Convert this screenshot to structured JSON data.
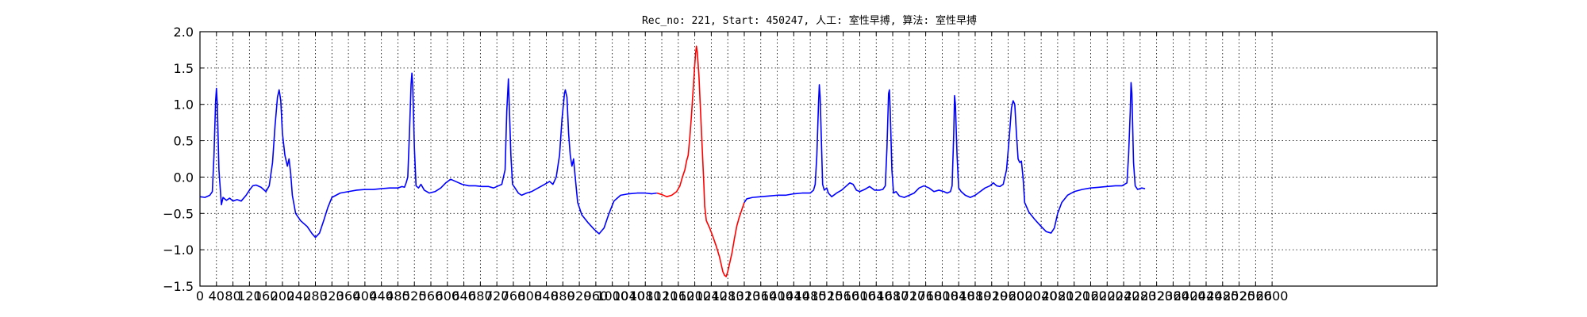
{
  "chart_data": {
    "type": "line",
    "title": "Rec_no: 221, Start: 450247, 人工: 室性早搏, 算法: 室性早搏",
    "xlabel": "",
    "ylabel": "",
    "xlim": [
      0,
      1500
    ],
    "ylim": [
      -1.5,
      2.0
    ],
    "grid": true,
    "x_ticks": [
      0,
      20,
      40,
      60,
      80,
      100,
      120,
      140,
      160,
      180,
      200,
      220,
      240,
      260,
      280,
      300,
      320,
      340,
      360,
      380,
      400,
      420,
      440,
      460,
      480,
      500,
      520,
      540,
      560,
      580,
      600,
      620,
      640,
      660,
      680,
      700,
      720,
      740,
      760,
      780,
      800,
      820,
      840,
      860,
      880,
      900,
      920,
      940,
      960,
      980,
      1000,
      1020,
      1040,
      1060,
      1080,
      1100,
      1120,
      1140,
      1160,
      1180,
      1200,
      1220,
      1240,
      1260,
      1280,
      1300
    ],
    "x_tick_labels": [
      "0",
      "40",
      "80",
      "120",
      "160",
      "200",
      "240",
      "280",
      "320",
      "360",
      "400",
      "440",
      "480",
      "520",
      "560",
      "600",
      "640",
      "680",
      "720",
      "760",
      "800",
      "840",
      "880",
      "920",
      "960",
      "1000",
      "1040",
      "1080",
      "1120",
      "1160",
      "1200",
      "1240",
      "1280",
      "1320",
      "1360",
      "1400",
      "1440",
      "1480",
      "1520",
      "1560",
      "1600",
      "1640",
      "1680",
      "1720",
      "1760",
      "1800",
      "1840",
      "1880",
      "1920",
      "1960",
      "2000",
      "2040",
      "2080",
      "2120",
      "2160",
      "2200",
      "2240",
      "2280",
      "2320",
      "2360",
      "2400",
      "2440",
      "2480",
      "2520",
      "2560",
      "2600"
    ],
    "y_ticks": [
      -1.5,
      -1.0,
      -0.5,
      0.0,
      0.5,
      1.0,
      1.5,
      2.0
    ],
    "y_tick_labels": [
      "−1.5",
      "−1.0",
      "−0.5",
      "0.0",
      "0.5",
      "1.0",
      "1.5",
      "2.0"
    ],
    "series": [
      {
        "color": "#0000ff",
        "points": [
          [
            0,
            -0.27
          ],
          [
            6,
            -0.28
          ],
          [
            12,
            -0.25
          ],
          [
            15,
            -0.2
          ],
          [
            17,
            0.3
          ],
          [
            19,
            1.05
          ],
          [
            20,
            1.22
          ],
          [
            21,
            1.0
          ],
          [
            23,
            0.1
          ],
          [
            25,
            -0.22
          ],
          [
            26,
            -0.38
          ],
          [
            28,
            -0.28
          ],
          [
            32,
            -0.32
          ],
          [
            36,
            -0.29
          ],
          [
            40,
            -0.33
          ],
          [
            45,
            -0.31
          ],
          [
            50,
            -0.33
          ],
          [
            56,
            -0.25
          ],
          [
            60,
            -0.18
          ],
          [
            64,
            -0.12
          ],
          [
            68,
            -0.11
          ],
          [
            74,
            -0.14
          ],
          [
            80,
            -0.2
          ],
          [
            84,
            -0.12
          ],
          [
            88,
            0.2
          ],
          [
            91,
            0.7
          ],
          [
            94,
            1.1
          ],
          [
            96,
            1.2
          ],
          [
            98,
            1.05
          ],
          [
            100,
            0.6
          ],
          [
            103,
            0.3
          ],
          [
            106,
            0.15
          ],
          [
            108,
            0.25
          ],
          [
            110,
            0.05
          ],
          [
            112,
            -0.25
          ],
          [
            116,
            -0.5
          ],
          [
            122,
            -0.6
          ],
          [
            130,
            -0.68
          ],
          [
            136,
            -0.78
          ],
          [
            140,
            -0.83
          ],
          [
            145,
            -0.77
          ],
          [
            150,
            -0.6
          ],
          [
            155,
            -0.42
          ],
          [
            160,
            -0.28
          ],
          [
            170,
            -0.22
          ],
          [
            180,
            -0.2
          ],
          [
            190,
            -0.18
          ],
          [
            200,
            -0.17
          ],
          [
            210,
            -0.17
          ],
          [
            220,
            -0.16
          ],
          [
            230,
            -0.15
          ],
          [
            240,
            -0.15
          ],
          [
            245,
            -0.13
          ],
          [
            248,
            -0.14
          ],
          [
            250,
            -0.08
          ],
          [
            252,
            0.0
          ],
          [
            254,
            0.6
          ],
          [
            256,
            1.28
          ],
          [
            257,
            1.43
          ],
          [
            258,
            1.25
          ],
          [
            260,
            0.4
          ],
          [
            262,
            -0.12
          ],
          [
            265,
            -0.15
          ],
          [
            268,
            -0.1
          ],
          [
            272,
            -0.18
          ],
          [
            278,
            -0.22
          ],
          [
            285,
            -0.2
          ],
          [
            292,
            -0.15
          ],
          [
            298,
            -0.08
          ],
          [
            304,
            -0.03
          ],
          [
            310,
            -0.06
          ],
          [
            318,
            -0.1
          ],
          [
            326,
            -0.12
          ],
          [
            334,
            -0.12
          ],
          [
            342,
            -0.13
          ],
          [
            350,
            -0.13
          ],
          [
            356,
            -0.15
          ],
          [
            362,
            -0.12
          ],
          [
            366,
            -0.1
          ],
          [
            370,
            0.1
          ],
          [
            372,
            0.9
          ],
          [
            374,
            1.35
          ],
          [
            375,
            1.0
          ],
          [
            377,
            0.3
          ],
          [
            379,
            -0.1
          ],
          [
            382,
            -0.15
          ],
          [
            386,
            -0.22
          ],
          [
            390,
            -0.25
          ],
          [
            396,
            -0.22
          ],
          [
            402,
            -0.2
          ],
          [
            410,
            -0.15
          ],
          [
            418,
            -0.1
          ],
          [
            424,
            -0.06
          ],
          [
            428,
            -0.1
          ],
          [
            432,
            0.0
          ],
          [
            436,
            0.3
          ],
          [
            439,
            0.8
          ],
          [
            442,
            1.15
          ],
          [
            443,
            1.2
          ],
          [
            445,
            1.1
          ],
          [
            447,
            0.6
          ],
          [
            449,
            0.3
          ],
          [
            451,
            0.15
          ],
          [
            453,
            0.25
          ],
          [
            455,
            0.0
          ],
          [
            458,
            -0.35
          ],
          [
            463,
            -0.52
          ],
          [
            470,
            -0.62
          ],
          [
            478,
            -0.72
          ],
          [
            484,
            -0.78
          ],
          [
            490,
            -0.7
          ],
          [
            496,
            -0.5
          ],
          [
            502,
            -0.33
          ],
          [
            510,
            -0.25
          ],
          [
            520,
            -0.23
          ],
          [
            530,
            -0.22
          ],
          [
            540,
            -0.22
          ],
          [
            548,
            -0.23
          ],
          [
            554,
            -0.22
          ]
        ],
        "name": ""
      },
      {
        "color": "#ff0000",
        "points": [
          [
            554,
            -0.22
          ],
          [
            560,
            -0.24
          ],
          [
            566,
            -0.27
          ],
          [
            572,
            -0.25
          ],
          [
            578,
            -0.2
          ],
          [
            582,
            -0.12
          ],
          [
            585,
            0.0
          ],
          [
            588,
            0.1
          ],
          [
            590,
            0.22
          ],
          [
            592,
            0.3
          ],
          [
            594,
            0.55
          ],
          [
            596,
            0.85
          ],
          [
            598,
            1.2
          ],
          [
            600,
            1.55
          ],
          [
            601,
            1.7
          ],
          [
            602,
            1.8
          ],
          [
            603,
            1.72
          ],
          [
            605,
            1.4
          ],
          [
            607,
            0.9
          ],
          [
            609,
            0.4
          ],
          [
            611,
            -0.1
          ],
          [
            612,
            -0.4
          ],
          [
            614,
            -0.6
          ],
          [
            618,
            -0.7
          ],
          [
            622,
            -0.82
          ],
          [
            626,
            -0.95
          ],
          [
            630,
            -1.1
          ],
          [
            632,
            -1.2
          ],
          [
            634,
            -1.3
          ],
          [
            636,
            -1.35
          ],
          [
            638,
            -1.37
          ],
          [
            640,
            -1.3
          ],
          [
            642,
            -1.2
          ],
          [
            645,
            -1.05
          ],
          [
            648,
            -0.85
          ],
          [
            651,
            -0.67
          ],
          [
            654,
            -0.55
          ],
          [
            657,
            -0.45
          ],
          [
            660,
            -0.35
          ]
        ],
        "name": ""
      },
      {
        "color": "#0000ff",
        "points": [
          [
            660,
            -0.35
          ],
          [
            663,
            -0.3
          ],
          [
            670,
            -0.28
          ],
          [
            680,
            -0.27
          ],
          [
            690,
            -0.26
          ],
          [
            700,
            -0.25
          ],
          [
            710,
            -0.25
          ],
          [
            720,
            -0.23
          ],
          [
            730,
            -0.22
          ],
          [
            740,
            -0.22
          ],
          [
            744,
            -0.18
          ],
          [
            746,
            -0.1
          ],
          [
            748,
            0.3
          ],
          [
            750,
            1.0
          ],
          [
            751,
            1.27
          ],
          [
            752,
            1.1
          ],
          [
            754,
            0.3
          ],
          [
            755,
            -0.1
          ],
          [
            757,
            -0.18
          ],
          [
            760,
            -0.15
          ],
          [
            762,
            -0.22
          ],
          [
            766,
            -0.27
          ],
          [
            772,
            -0.22
          ],
          [
            778,
            -0.18
          ],
          [
            784,
            -0.12
          ],
          [
            788,
            -0.08
          ],
          [
            792,
            -0.1
          ],
          [
            796,
            -0.18
          ],
          [
            800,
            -0.2
          ],
          [
            806,
            -0.17
          ],
          [
            812,
            -0.13
          ],
          [
            818,
            -0.18
          ],
          [
            824,
            -0.18
          ],
          [
            828,
            -0.17
          ],
          [
            831,
            -0.12
          ],
          [
            833,
            0.4
          ],
          [
            835,
            1.15
          ],
          [
            836,
            1.2
          ],
          [
            837,
            0.9
          ],
          [
            839,
            0.1
          ],
          [
            841,
            -0.22
          ],
          [
            844,
            -0.2
          ],
          [
            848,
            -0.26
          ],
          [
            854,
            -0.28
          ],
          [
            860,
            -0.25
          ],
          [
            866,
            -0.22
          ],
          [
            872,
            -0.15
          ],
          [
            878,
            -0.12
          ],
          [
            884,
            -0.15
          ],
          [
            890,
            -0.2
          ],
          [
            896,
            -0.18
          ],
          [
            902,
            -0.2
          ],
          [
            906,
            -0.22
          ],
          [
            910,
            -0.2
          ],
          [
            912,
            -0.12
          ],
          [
            914,
            0.6
          ],
          [
            915,
            1.12
          ],
          [
            916,
            1.0
          ],
          [
            918,
            0.3
          ],
          [
            920,
            -0.15
          ],
          [
            923,
            -0.2
          ],
          [
            928,
            -0.25
          ],
          [
            934,
            -0.28
          ],
          [
            940,
            -0.25
          ],
          [
            946,
            -0.2
          ],
          [
            952,
            -0.15
          ],
          [
            958,
            -0.12
          ],
          [
            962,
            -0.08
          ],
          [
            966,
            -0.12
          ],
          [
            970,
            -0.13
          ],
          [
            974,
            -0.1
          ],
          [
            978,
            0.1
          ],
          [
            981,
            0.5
          ],
          [
            984,
            0.95
          ],
          [
            986,
            1.05
          ],
          [
            988,
            1.0
          ],
          [
            990,
            0.6
          ],
          [
            992,
            0.25
          ],
          [
            994,
            0.2
          ],
          [
            996,
            0.22
          ],
          [
            998,
            0.0
          ],
          [
            1000,
            -0.35
          ],
          [
            1005,
            -0.48
          ],
          [
            1012,
            -0.58
          ],
          [
            1020,
            -0.68
          ],
          [
            1026,
            -0.75
          ],
          [
            1032,
            -0.77
          ],
          [
            1036,
            -0.7
          ],
          [
            1040,
            -0.5
          ],
          [
            1045,
            -0.35
          ],
          [
            1052,
            -0.25
          ],
          [
            1060,
            -0.2
          ],
          [
            1070,
            -0.17
          ],
          [
            1080,
            -0.15
          ],
          [
            1090,
            -0.14
          ],
          [
            1100,
            -0.13
          ],
          [
            1110,
            -0.12
          ],
          [
            1118,
            -0.12
          ],
          [
            1124,
            -0.08
          ],
          [
            1126,
            0.3
          ],
          [
            1128,
            0.9
          ],
          [
            1129,
            1.3
          ],
          [
            1130,
            1.15
          ],
          [
            1132,
            0.2
          ],
          [
            1134,
            -0.12
          ],
          [
            1137,
            -0.17
          ],
          [
            1142,
            -0.15
          ],
          [
            1146,
            -0.16
          ]
        ],
        "name": ""
      }
    ]
  }
}
